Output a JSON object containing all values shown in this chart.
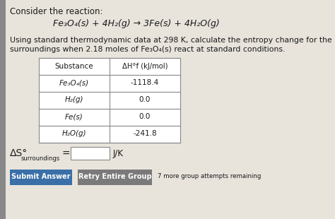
{
  "bg_color": "#c8c4bc",
  "content_bg": "#e8e4dc",
  "title_text": "Consider the reaction:",
  "reaction": "Fe₃O₄(s) + 4H₂(g) → 3Fe(s) + 4H₂O(g)",
  "description_line1": "Using standard thermodynamic data at 298 K, calculate the entropy change for the",
  "description_line2": "surroundings when 2.18 moles of Fe₃O₄(s) react at standard conditions.",
  "table_substances": [
    "Fe₃O₄(s)",
    "H₂(g)",
    "Fe(s)",
    "H₂O(g)"
  ],
  "table_values": [
    "-1118.4",
    "0.0",
    "0.0",
    "-241.8"
  ],
  "col_header_1": "Substance",
  "col_header_2": "ΔH°f (kJ/mol)",
  "delta_s_main": "ΔS",
  "delta_s_sup": "°",
  "delta_s_sub": "surroundings",
  "answer_unit": "J/K",
  "btn1_text": "Submit Answer",
  "btn1_color": "#3a6fa8",
  "btn2_text": "Retry Entire Group",
  "btn2_color": "#7a7a7a",
  "btn_note": "7 more group attempts remaining",
  "left_bar_color": "#888888"
}
